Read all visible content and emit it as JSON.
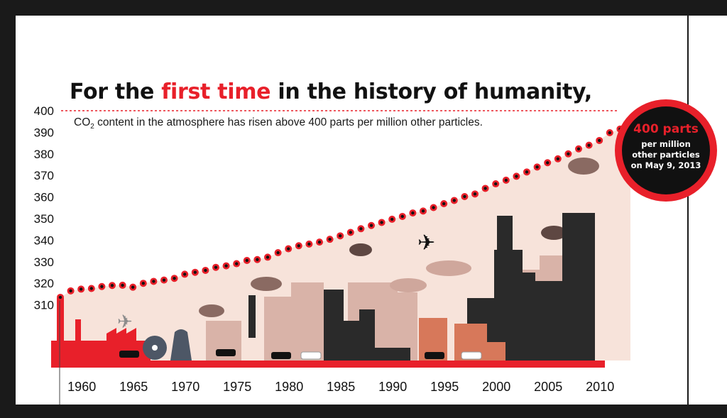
{
  "title": {
    "prefix": "For the ",
    "highlight": "first time",
    "suffix": " in the history of humanity,"
  },
  "subtitle": {
    "pre": "CO",
    "sub": "2",
    "post": " content in the atmosphere has risen above 400 parts per million other particles."
  },
  "callout": {
    "big": "400 parts",
    "small": "per million other particles on May 9, 2013"
  },
  "colors": {
    "accent": "#e8202a",
    "dark": "#111111",
    "background_tint": "#f7e3da",
    "frame": "#1a1a1a"
  },
  "chart_data": {
    "type": "scatter",
    "xlim": [
      1958,
      2013
    ],
    "ylim": [
      300,
      400
    ],
    "x_ticks": [
      1960,
      1965,
      1970,
      1975,
      1980,
      1985,
      1990,
      1995,
      2000,
      2005,
      2010
    ],
    "y_ticks": [
      310,
      320,
      330,
      340,
      350,
      360,
      370,
      380,
      390,
      400
    ],
    "reference_line": 400,
    "grid": false,
    "series": [
      {
        "x": [
          1958,
          1959,
          1960,
          1961,
          1962,
          1963,
          1964,
          1965,
          1966,
          1967,
          1968,
          1969,
          1970,
          1971,
          1972,
          1973,
          1974,
          1975,
          1976,
          1977,
          1978,
          1979,
          1980,
          1981,
          1982,
          1983,
          1984,
          1985,
          1986,
          1987,
          1988,
          1989,
          1990,
          1991,
          1992,
          1993,
          1994,
          1995,
          1996,
          1997,
          1998,
          1999,
          2000,
          2001,
          2002,
          2003,
          2004,
          2005,
          2006,
          2007,
          2008,
          2009,
          2010,
          2011,
          2012,
          2013
        ],
        "y": [
          313.5,
          316.5,
          317.3,
          317.6,
          318.5,
          319.0,
          319.1,
          318.2,
          320.0,
          320.9,
          321.5,
          322.3,
          324.2,
          325.1,
          326.0,
          327.4,
          328.1,
          329.1,
          330.6,
          331.0,
          332.1,
          334.2,
          336.0,
          337.4,
          338.2,
          339.1,
          340.4,
          342.0,
          343.6,
          345.3,
          346.8,
          348.2,
          349.7,
          351.0,
          352.6,
          353.5,
          355.1,
          356.9,
          358.4,
          360.2,
          361.4,
          364.0,
          366.1,
          367.8,
          369.6,
          371.6,
          373.9,
          375.9,
          377.7,
          380.0,
          382.3,
          384.0,
          386.2,
          389.8,
          391.5,
          396.0
        ]
      }
    ]
  }
}
